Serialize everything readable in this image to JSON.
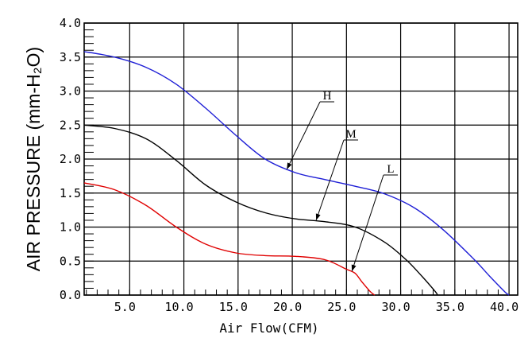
{
  "chart_data": {
    "type": "line",
    "xlabel": "Air Flow(CFM)",
    "ylabel": "AIR PRESSURE (mm-H₂O)",
    "xlim": [
      0.8,
      40.8
    ],
    "ylim": [
      0,
      4.0
    ],
    "x_ticks": [
      "5.0",
      "10.0",
      "15.0",
      "20.0",
      "25.0",
      "30.0",
      "35.0",
      "40.0"
    ],
    "y_ticks": [
      "0.0",
      "0.5",
      "1.0",
      "1.5",
      "2.0",
      "2.5",
      "3.0",
      "3.5",
      "4.0"
    ],
    "grid": true,
    "series": [
      {
        "name": "H",
        "color": "#1f1fd6",
        "x": [
          0.8,
          3.6,
          6.5,
          9.3,
          12.0,
          14.8,
          17.5,
          20.3,
          23.0,
          25.8,
          28.5,
          31.3,
          34.0,
          36.8,
          38.2,
          39.6,
          40.0
        ],
        "y": [
          3.58,
          3.5,
          3.35,
          3.1,
          2.75,
          2.35,
          2.0,
          1.8,
          1.7,
          1.6,
          1.49,
          1.28,
          0.95,
          0.52,
          0.28,
          0.05,
          0.0
        ]
      },
      {
        "name": "M",
        "color": "#000000",
        "x": [
          0.8,
          3.6,
          6.5,
          9.3,
          12.0,
          14.8,
          17.5,
          20.3,
          23.0,
          25.8,
          28.5,
          30.5,
          32.0,
          33.2,
          33.4
        ],
        "y": [
          2.5,
          2.45,
          2.3,
          1.98,
          1.62,
          1.37,
          1.21,
          1.12,
          1.08,
          1.0,
          0.78,
          0.52,
          0.27,
          0.05,
          0.0
        ]
      },
      {
        "name": "L",
        "color": "#e00000",
        "x": [
          0.8,
          3.6,
          6.5,
          9.3,
          12.0,
          14.8,
          17.5,
          20.3,
          23.0,
          25.0,
          25.8,
          26.4,
          27.2,
          27.6
        ],
        "y": [
          1.65,
          1.55,
          1.32,
          1.0,
          0.75,
          0.62,
          0.58,
          0.57,
          0.52,
          0.38,
          0.32,
          0.2,
          0.05,
          0.0
        ]
      }
    ],
    "annotations": [
      {
        "text": "H",
        "series": "H",
        "point": [
          19.5,
          1.85
        ]
      },
      {
        "text": "M",
        "series": "M",
        "point": [
          22.2,
          1.1
        ]
      },
      {
        "text": "L",
        "series": "L",
        "point": [
          25.5,
          0.35
        ]
      }
    ]
  }
}
